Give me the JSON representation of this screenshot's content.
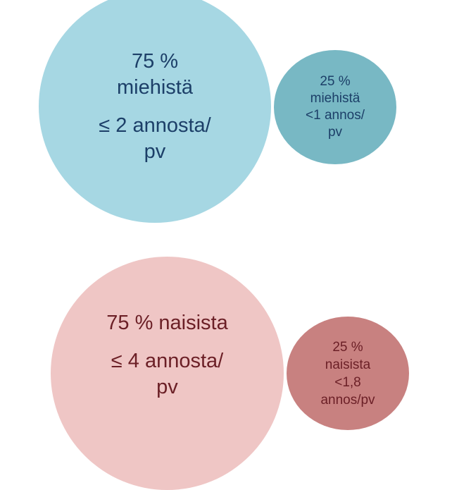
{
  "colors": {
    "men_big_fill": "#a6d7e3",
    "men_small_fill": "#78b8c4",
    "men_text": "#1c3f68",
    "women_big_fill": "#efc6c5",
    "women_small_fill": "#c88180",
    "women_text": "#6b1f26"
  },
  "men": {
    "big": {
      "lines": [
        "75 %",
        "miehistä",
        "≤ 2 annosta/",
        "pv"
      ]
    },
    "small": {
      "lines": [
        "25 %",
        "miehistä",
        "<1 annos/",
        "pv"
      ]
    }
  },
  "women": {
    "big": {
      "lines": [
        "75 % naisista",
        "≤ 4 annosta/",
        "pv"
      ]
    },
    "small": {
      "lines": [
        "25 %",
        "naisista",
        "<1,8",
        "annos/pv"
      ]
    }
  }
}
